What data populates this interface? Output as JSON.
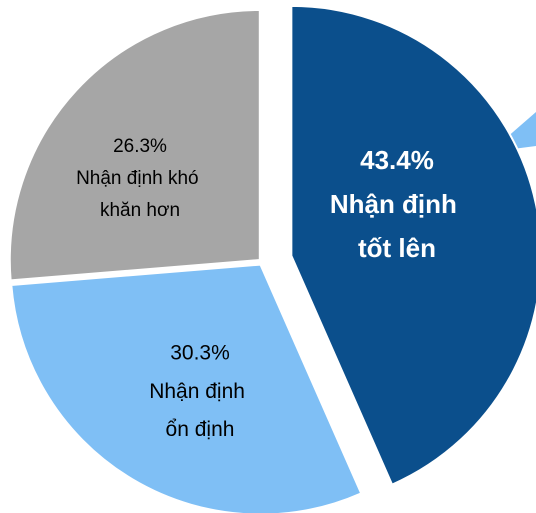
{
  "chart_data": {
    "type": "pie",
    "categories": [
      "Nhận định tốt lên",
      "Nhận định ổn định",
      "Nhận định khó khăn hơn"
    ],
    "values": [
      43.4,
      30.3,
      26.3
    ],
    "value_labels": [
      "43.4%",
      "30.3%",
      "26.3%"
    ],
    "colors": [
      "#0b4f8c",
      "#7fbff5",
      "#a6a6a6"
    ]
  }
}
